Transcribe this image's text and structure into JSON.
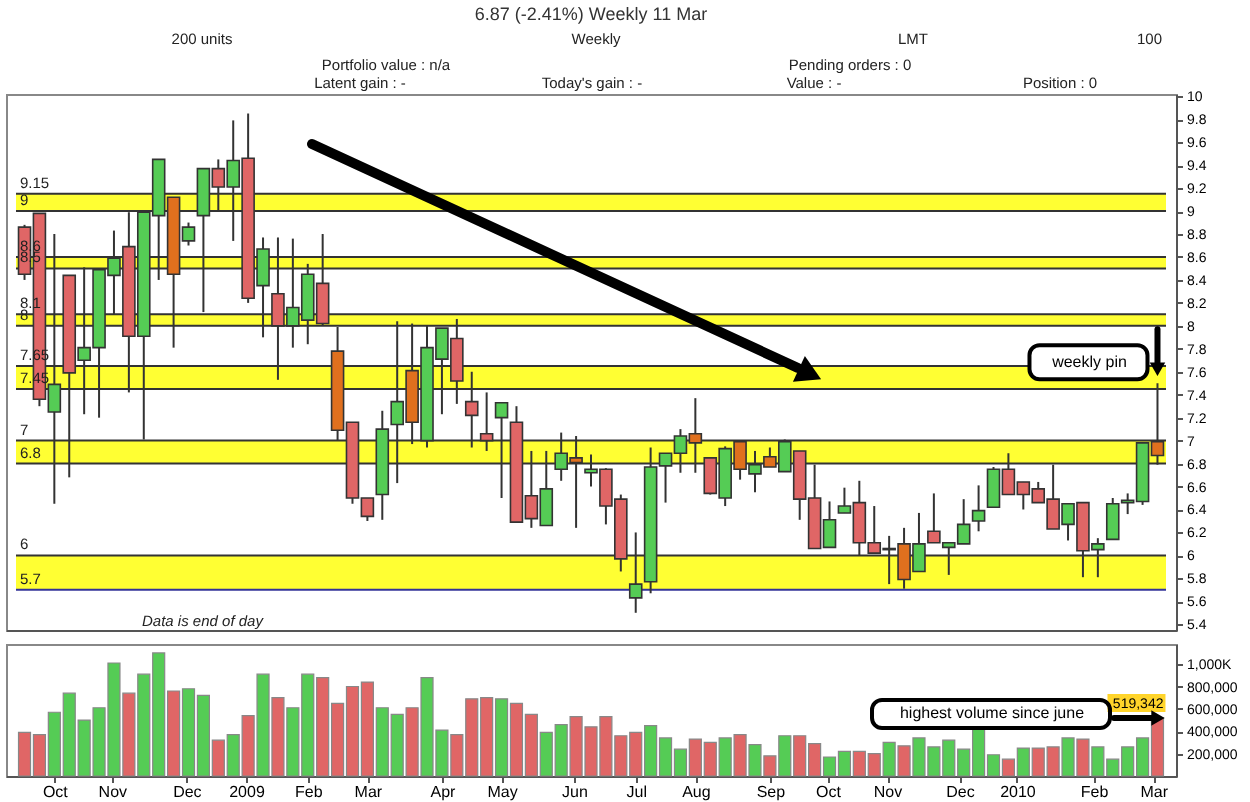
{
  "chart_data": [
    {
      "type": "candlestick",
      "title": "6.87 (-2.41%)   Weekly   11 Mar",
      "x": [
        "2008-09-22",
        "2008-09-29",
        "2008-10-06",
        "2008-10-13",
        "2008-10-20",
        "2008-10-27",
        "2008-11-03",
        "2008-11-10",
        "2008-11-17",
        "2008-11-24",
        "2008-12-01",
        "2008-12-08",
        "2008-12-15",
        "2008-12-22",
        "2008-12-29",
        "2009-01-05",
        "2009-01-12",
        "2009-01-19",
        "2009-01-26",
        "2009-02-02",
        "2009-02-09",
        "2009-02-16",
        "2009-02-23",
        "2009-03-02",
        "2009-03-09",
        "2009-03-16",
        "2009-03-23",
        "2009-03-30",
        "2009-04-06",
        "2009-04-13",
        "2009-04-20",
        "2009-04-27",
        "2009-05-04",
        "2009-05-11",
        "2009-05-18",
        "2009-05-25",
        "2009-06-01",
        "2009-06-08",
        "2009-06-15",
        "2009-06-22",
        "2009-06-29",
        "2009-07-06",
        "2009-07-13",
        "2009-07-20",
        "2009-07-27",
        "2009-08-03",
        "2009-08-10",
        "2009-08-17",
        "2009-08-24",
        "2009-08-31",
        "2009-09-07",
        "2009-09-14",
        "2009-09-21",
        "2009-09-28",
        "2009-10-05",
        "2009-10-12",
        "2009-10-19",
        "2009-10-26",
        "2009-11-02",
        "2009-11-09",
        "2009-11-16",
        "2009-11-23",
        "2009-11-30",
        "2009-12-07",
        "2009-12-14",
        "2009-12-21",
        "2009-12-28",
        "2010-01-04",
        "2010-01-11",
        "2010-01-18",
        "2010-01-25",
        "2010-02-01",
        "2010-02-08",
        "2010-02-15",
        "2010-02-22",
        "2010-03-01",
        "2010-03-08"
      ],
      "ohlc": [
        [
          8.86,
          8.88,
          8.4,
          8.45
        ],
        [
          8.98,
          8.98,
          7.3,
          7.36
        ],
        [
          7.25,
          8.8,
          6.45,
          7.49
        ],
        [
          8.44,
          8.44,
          6.68,
          7.59
        ],
        [
          7.7,
          8.51,
          7.23,
          7.81
        ],
        [
          7.81,
          8.49,
          7.2,
          8.49
        ],
        [
          8.44,
          8.83,
          8.1,
          8.59
        ],
        [
          8.69,
          8.99,
          7.42,
          7.91
        ],
        [
          7.91,
          8.99,
          7.01,
          8.99
        ],
        [
          8.96,
          9.45,
          8.4,
          9.45
        ],
        [
          9.12,
          9.12,
          7.81,
          8.45
        ],
        [
          8.74,
          8.9,
          8.7,
          8.86
        ],
        [
          8.96,
          9.37,
          8.12,
          9.37
        ],
        [
          9.37,
          9.45,
          9.0,
          9.21
        ],
        [
          9.21,
          9.79,
          8.74,
          9.44
        ],
        [
          9.46,
          9.85,
          8.2,
          8.24
        ],
        [
          8.35,
          8.77,
          7.9,
          8.67
        ],
        [
          8.28,
          8.77,
          7.53,
          8.0
        ],
        [
          8.0,
          8.76,
          7.81,
          8.16
        ],
        [
          8.05,
          8.54,
          7.84,
          8.45
        ],
        [
          8.37,
          8.8,
          8.0,
          8.02
        ],
        [
          7.78,
          7.99,
          7.0,
          7.09
        ],
        [
          7.16,
          7.16,
          6.45,
          6.5
        ],
        [
          6.5,
          6.5,
          6.3,
          6.34
        ],
        [
          6.53,
          7.26,
          6.31,
          7.1
        ],
        [
          7.14,
          8.04,
          6.63,
          7.34
        ],
        [
          7.61,
          8.02,
          6.97,
          7.16
        ],
        [
          7.0,
          8.0,
          6.94,
          7.81
        ],
        [
          7.71,
          7.98,
          7.23,
          7.98
        ],
        [
          7.89,
          8.06,
          7.32,
          7.52
        ],
        [
          7.34,
          7.6,
          6.94,
          7.22
        ],
        [
          7.06,
          7.42,
          6.91,
          7.0
        ],
        [
          7.2,
          7.33,
          6.5,
          7.33
        ],
        [
          7.16,
          7.3,
          6.29,
          6.29
        ],
        [
          6.52,
          6.91,
          6.24,
          6.32
        ],
        [
          6.26,
          6.91,
          6.26,
          6.58
        ],
        [
          6.75,
          7.07,
          6.65,
          6.89
        ],
        [
          6.85,
          7.04,
          6.24,
          6.81
        ],
        [
          6.72,
          6.88,
          6.6,
          6.75
        ],
        [
          6.75,
          6.76,
          6.27,
          6.43
        ],
        [
          6.49,
          6.53,
          5.86,
          5.97
        ],
        [
          5.63,
          6.2,
          5.5,
          5.75
        ],
        [
          5.77,
          6.94,
          5.67,
          6.77
        ],
        [
          6.78,
          6.89,
          6.46,
          6.89
        ],
        [
          6.89,
          7.1,
          6.72,
          7.04
        ],
        [
          7.06,
          7.37,
          6.72,
          6.98
        ],
        [
          6.85,
          6.85,
          6.53,
          6.54
        ],
        [
          6.5,
          6.95,
          6.43,
          6.93
        ],
        [
          6.99,
          6.99,
          6.66,
          6.75
        ],
        [
          6.71,
          6.91,
          6.55,
          6.79
        ],
        [
          6.86,
          6.94,
          6.77,
          6.77
        ],
        [
          6.73,
          7.01,
          6.73,
          6.99
        ],
        [
          6.91,
          6.91,
          6.31,
          6.49
        ],
        [
          6.5,
          6.79,
          6.06,
          6.06
        ],
        [
          6.07,
          6.47,
          6.07,
          6.31
        ],
        [
          6.37,
          6.59,
          6.37,
          6.43
        ],
        [
          6.46,
          6.65,
          6.0,
          6.11
        ],
        [
          6.11,
          6.43,
          6.02,
          6.02
        ],
        [
          6.06,
          6.17,
          5.75,
          6.05
        ],
        [
          6.1,
          6.24,
          5.71,
          5.79
        ],
        [
          5.86,
          6.37,
          5.86,
          6.1
        ],
        [
          6.21,
          6.54,
          6.11,
          6.11
        ],
        [
          6.07,
          6.11,
          5.83,
          6.11
        ],
        [
          6.1,
          6.49,
          6.1,
          6.27
        ],
        [
          6.3,
          6.61,
          6.21,
          6.39
        ],
        [
          6.42,
          6.77,
          6.42,
          6.75
        ],
        [
          6.75,
          6.89,
          6.53,
          6.53
        ],
        [
          6.64,
          6.64,
          6.4,
          6.53
        ],
        [
          6.58,
          6.64,
          6.46,
          6.46
        ],
        [
          6.49,
          6.79,
          6.23,
          6.23
        ],
        [
          6.27,
          6.45,
          6.13,
          6.45
        ],
        [
          6.46,
          6.46,
          5.81,
          6.04
        ],
        [
          6.05,
          6.15,
          5.81,
          6.1
        ],
        [
          6.14,
          6.5,
          6.14,
          6.45
        ],
        [
          6.46,
          6.54,
          6.36,
          6.48
        ],
        [
          6.47,
          6.98,
          6.44,
          6.98
        ],
        [
          6.99,
          7.5,
          6.79,
          6.87
        ]
      ],
      "colors": [
        "#e06666",
        "#e06666",
        "#55cc55",
        "#e06666",
        "#55cc55",
        "#55cc55",
        "#55cc55",
        "#e06666",
        "#55cc55",
        "#55cc55",
        "#e0701e",
        "#55cc55",
        "#55cc55",
        "#e06666",
        "#55cc55",
        "#e06666",
        "#55cc55",
        "#e06666",
        "#55cc55",
        "#55cc55",
        "#e06666",
        "#e0701e",
        "#e06666",
        "#e06666",
        "#55cc55",
        "#55cc55",
        "#e0701e",
        "#55cc55",
        "#55cc55",
        "#e06666",
        "#e06666",
        "#e06666",
        "#55cc55",
        "#e06666",
        "#e06666",
        "#55cc55",
        "#55cc55",
        "#e0701e",
        "#55cc55",
        "#e06666",
        "#e06666",
        "#55cc55",
        "#55cc55",
        "#55cc55",
        "#55cc55",
        "#e0701e",
        "#e06666",
        "#55cc55",
        "#e0701e",
        "#55cc55",
        "#e0701e",
        "#55cc55",
        "#e06666",
        "#e06666",
        "#55cc55",
        "#55cc55",
        "#e06666",
        "#e06666",
        "#333333",
        "#e0701e",
        "#55cc55",
        "#e06666",
        "#55cc55",
        "#55cc55",
        "#55cc55",
        "#55cc55",
        "#e06666",
        "#e06666",
        "#e06666",
        "#e06666",
        "#55cc55",
        "#e06666",
        "#55cc55",
        "#55cc55",
        "#55cc55",
        "#55cc55",
        "#e0701e"
      ],
      "xlim": [
        "2008-09-18",
        "2010-03-12"
      ],
      "ylim": [
        5.35,
        10.02
      ],
      "yticks": [
        5.4,
        5.6,
        5.8,
        6,
        6.2,
        6.4,
        6.6,
        6.8,
        7,
        7.2,
        7.4,
        7.6,
        7.8,
        8,
        8.2,
        8.4,
        8.6,
        8.8,
        9,
        9.2,
        9.4,
        9.6,
        9.8,
        10
      ],
      "tick_labels": "y",
      "bands": [
        {
          "axis": "y",
          "from": 9,
          "to": 9.15,
          "color": "#ffff33"
        },
        {
          "axis": "y",
          "from": 8.5,
          "to": 8.6,
          "color": "#ffff33"
        },
        {
          "axis": "y",
          "from": 8,
          "to": 8.1,
          "color": "#ffff33"
        },
        {
          "axis": "y",
          "from": 7.45,
          "to": 7.65,
          "color": "#ffff33"
        },
        {
          "axis": "y",
          "from": 6.8,
          "to": 7,
          "color": "#ffff33"
        },
        {
          "axis": "y",
          "from": 5.7,
          "to": 6,
          "color": "#ffff33"
        }
      ],
      "ref_lines": [
        {
          "axis": "y",
          "value": 9.15,
          "label": "9.15",
          "color": "#333333"
        },
        {
          "axis": "y",
          "value": 9,
          "label": "9",
          "color": "#333333"
        },
        {
          "axis": "y",
          "value": 8.6,
          "label": "8.6",
          "color": "#333333"
        },
        {
          "axis": "y",
          "value": 8.5,
          "label": "8.5",
          "color": "#333333"
        },
        {
          "axis": "y",
          "value": 8.1,
          "label": "8.1",
          "color": "#333333"
        },
        {
          "axis": "y",
          "value": 8,
          "label": "8",
          "color": "#333333"
        },
        {
          "axis": "y",
          "value": 7.65,
          "label": "7.65",
          "color": "#333333"
        },
        {
          "axis": "y",
          "value": 7.45,
          "label": "7.45",
          "color": "#333333"
        },
        {
          "axis": "y",
          "value": 7,
          "label": "7",
          "color": "#333333"
        },
        {
          "axis": "y",
          "value": 6.8,
          "label": "6.8",
          "color": "#333333"
        },
        {
          "axis": "y",
          "value": 6,
          "label": "6",
          "color": "#333333"
        },
        {
          "axis": "y",
          "value": 5.7,
          "label": "5.7",
          "color": "#333399"
        }
      ],
      "annotations": [
        "200 units",
        "Weekly",
        "LMT",
        "100",
        "Portfolio value : n/a",
        "Pending orders : 0",
        "Latent gain : -",
        "Today's gain : -",
        "Value : -",
        "Position : 0",
        "Data is end of day",
        {
          "text": "weekly pin",
          "x": "2010-03-08",
          "y": 7.5
        }
      ]
    },
    {
      "type": "bar",
      "x": [
        "2008-09-22",
        "2008-09-29",
        "2008-10-06",
        "2008-10-13",
        "2008-10-20",
        "2008-10-27",
        "2008-11-03",
        "2008-11-10",
        "2008-11-17",
        "2008-11-24",
        "2008-12-01",
        "2008-12-08",
        "2008-12-15",
        "2008-12-22",
        "2008-12-29",
        "2009-01-05",
        "2009-01-12",
        "2009-01-19",
        "2009-01-26",
        "2009-02-02",
        "2009-02-09",
        "2009-02-16",
        "2009-02-23",
        "2009-03-02",
        "2009-03-09",
        "2009-03-16",
        "2009-03-23",
        "2009-03-30",
        "2009-04-06",
        "2009-04-13",
        "2009-04-20",
        "2009-04-27",
        "2009-05-04",
        "2009-05-11",
        "2009-05-18",
        "2009-05-25",
        "2009-06-01",
        "2009-06-08",
        "2009-06-15",
        "2009-06-22",
        "2009-06-29",
        "2009-07-06",
        "2009-07-13",
        "2009-07-20",
        "2009-07-27",
        "2009-08-03",
        "2009-08-10",
        "2009-08-17",
        "2009-08-24",
        "2009-08-31",
        "2009-09-07",
        "2009-09-14",
        "2009-09-21",
        "2009-09-28",
        "2009-10-05",
        "2009-10-12",
        "2009-10-19",
        "2009-10-26",
        "2009-11-02",
        "2009-11-09",
        "2009-11-16",
        "2009-11-23",
        "2009-11-30",
        "2009-12-07",
        "2009-12-14",
        "2009-12-21",
        "2009-12-28",
        "2010-01-04",
        "2010-01-11",
        "2010-01-18",
        "2010-01-25",
        "2010-02-01",
        "2010-02-08",
        "2010-02-15",
        "2010-02-22",
        "2010-03-01",
        "2010-03-08"
      ],
      "values": [
        390000,
        370000,
        570000,
        740000,
        500000,
        610000,
        1010000,
        740000,
        910000,
        1100000,
        760000,
        780000,
        720000,
        320000,
        370000,
        540000,
        910000,
        700000,
        610000,
        910000,
        880000,
        650000,
        800000,
        840000,
        610000,
        550000,
        610000,
        880000,
        410000,
        370000,
        690000,
        700000,
        690000,
        650000,
        550000,
        390000,
        460000,
        530000,
        440000,
        530000,
        360000,
        390000,
        450000,
        340000,
        240000,
        330000,
        300000,
        340000,
        370000,
        280000,
        180000,
        360000,
        360000,
        290000,
        170000,
        220000,
        220000,
        200000,
        300000,
        270000,
        340000,
        260000,
        320000,
        240000,
        430000,
        190000,
        150000,
        250000,
        250000,
        260000,
        340000,
        330000,
        260000,
        150000,
        260000,
        340000,
        519342
      ],
      "colors": [
        "#e06666",
        "#e06666",
        "#55cc55",
        "#55cc55",
        "#55cc55",
        "#55cc55",
        "#55cc55",
        "#e06666",
        "#55cc55",
        "#55cc55",
        "#e06666",
        "#55cc55",
        "#55cc55",
        "#e06666",
        "#55cc55",
        "#e06666",
        "#55cc55",
        "#e06666",
        "#55cc55",
        "#55cc55",
        "#e06666",
        "#e06666",
        "#e06666",
        "#e06666",
        "#55cc55",
        "#55cc55",
        "#e06666",
        "#55cc55",
        "#55cc55",
        "#e06666",
        "#e06666",
        "#e06666",
        "#55cc55",
        "#e06666",
        "#e06666",
        "#55cc55",
        "#55cc55",
        "#e06666",
        "#e06666",
        "#e06666",
        "#e06666",
        "#e06666",
        "#55cc55",
        "#55cc55",
        "#55cc55",
        "#e06666",
        "#e06666",
        "#55cc55",
        "#e06666",
        "#55cc55",
        "#e06666",
        "#55cc55",
        "#e06666",
        "#e06666",
        "#55cc55",
        "#55cc55",
        "#e06666",
        "#e06666",
        "#55cc55",
        "#e06666",
        "#55cc55",
        "#55cc55",
        "#55cc55",
        "#55cc55",
        "#55cc55",
        "#55cc55",
        "#e06666",
        "#55cc55",
        "#e06666",
        "#e06666",
        "#55cc55",
        "#e06666",
        "#55cc55",
        "#55cc55",
        "#55cc55",
        "#55cc55",
        "#e06666"
      ],
      "value_labels": [
        null,
        null,
        null,
        null,
        null,
        null,
        null,
        null,
        null,
        null,
        null,
        null,
        null,
        null,
        null,
        null,
        null,
        null,
        null,
        null,
        null,
        null,
        null,
        null,
        null,
        null,
        null,
        null,
        null,
        null,
        null,
        null,
        null,
        null,
        null,
        null,
        null,
        null,
        null,
        null,
        null,
        null,
        null,
        null,
        null,
        null,
        null,
        null,
        null,
        null,
        null,
        null,
        null,
        null,
        null,
        null,
        null,
        null,
        null,
        null,
        null,
        null,
        null,
        null,
        null,
        null,
        null,
        null,
        null,
        null,
        null,
        null,
        null,
        null,
        null,
        null,
        "519,342"
      ],
      "xlim": [
        "2008-09-18",
        "2010-03-12"
      ],
      "xticks": [
        {
          "value": "2008-10-06",
          "label": "Oct"
        },
        {
          "value": "2008-11-02",
          "label": "Nov"
        },
        {
          "value": "2008-12-07",
          "label": "Dec"
        },
        {
          "value": "2009-01-04",
          "label": "2009"
        },
        {
          "value": "2009-02-02",
          "label": "Feb"
        },
        {
          "value": "2009-03-02",
          "label": "Mar"
        },
        {
          "value": "2009-04-06",
          "label": "Apr"
        },
        {
          "value": "2009-05-04",
          "label": "May"
        },
        {
          "value": "2009-06-07",
          "label": "Jun"
        },
        {
          "value": "2009-07-06",
          "label": "Jul"
        },
        {
          "value": "2009-08-03",
          "label": "Aug"
        },
        {
          "value": "2009-09-07",
          "label": "Sep"
        },
        {
          "value": "2009-10-04",
          "label": "Oct"
        },
        {
          "value": "2009-11-01",
          "label": "Nov"
        },
        {
          "value": "2009-12-05",
          "label": "Dec"
        },
        {
          "value": "2010-01-01",
          "label": "2010"
        },
        {
          "value": "2010-02-06",
          "label": "Feb"
        },
        {
          "value": "2010-03-06",
          "label": "Mar"
        }
      ],
      "ylim": [
        0,
        1180000
      ],
      "yticks": [
        {
          "value": 200000,
          "label": "200,000"
        },
        {
          "value": 400000,
          "label": "400,000"
        },
        {
          "value": 600000,
          "label": "600,000"
        },
        {
          "value": 800000,
          "label": "800,000"
        },
        {
          "value": 1000000,
          "label": "1,000K"
        }
      ],
      "annotations": [
        "highest volume since june"
      ]
    }
  ]
}
